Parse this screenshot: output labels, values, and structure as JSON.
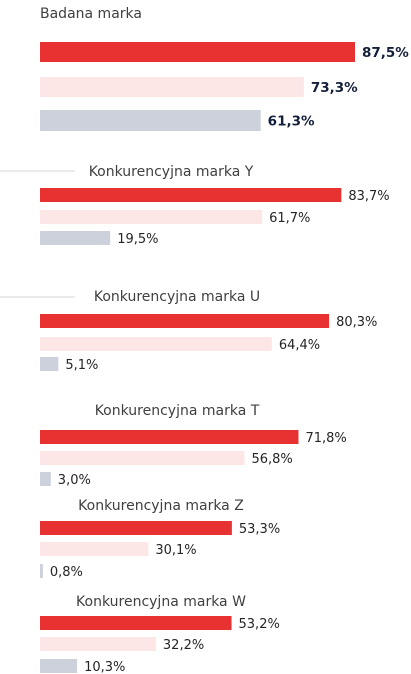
{
  "chart_data": {
    "type": "bar",
    "orientation": "horizontal",
    "xlim": [
      0,
      100
    ],
    "grid": false,
    "value_suffix": "%",
    "series_colors": [
      "#e83232",
      "#fde6e6",
      "#cdd1db"
    ],
    "groups": [
      {
        "name": "Badana marka",
        "values": [
          87.5,
          73.3,
          61.3
        ],
        "labels": [
          "87,5%",
          "73,3%",
          "61,3%"
        ],
        "highlight": true
      },
      {
        "name": "Konkurencyjna marka Y",
        "values": [
          83.7,
          61.7,
          19.5
        ],
        "labels": [
          "83,7%",
          "61,7%",
          "19,5%"
        ]
      },
      {
        "name": "Konkurencyjna marka U",
        "values": [
          80.3,
          64.4,
          5.1
        ],
        "labels": [
          "80,3%",
          "64,4%",
          "5,1%"
        ]
      },
      {
        "name": "Konkurencyjna marka T",
        "values": [
          71.8,
          56.8,
          3.0
        ],
        "labels": [
          "71,8%",
          "56,8%",
          "3,0%"
        ]
      },
      {
        "name": "Konkurencyjna marka Z",
        "values": [
          53.3,
          30.1,
          0.8
        ],
        "labels": [
          "53,3%",
          "30,1%",
          "0,8%"
        ]
      },
      {
        "name": "Konkurencyjna marka W",
        "values": [
          53.2,
          32.2,
          10.3
        ],
        "labels": [
          "53,2%",
          "32,2%",
          "10,3%"
        ]
      }
    ]
  }
}
